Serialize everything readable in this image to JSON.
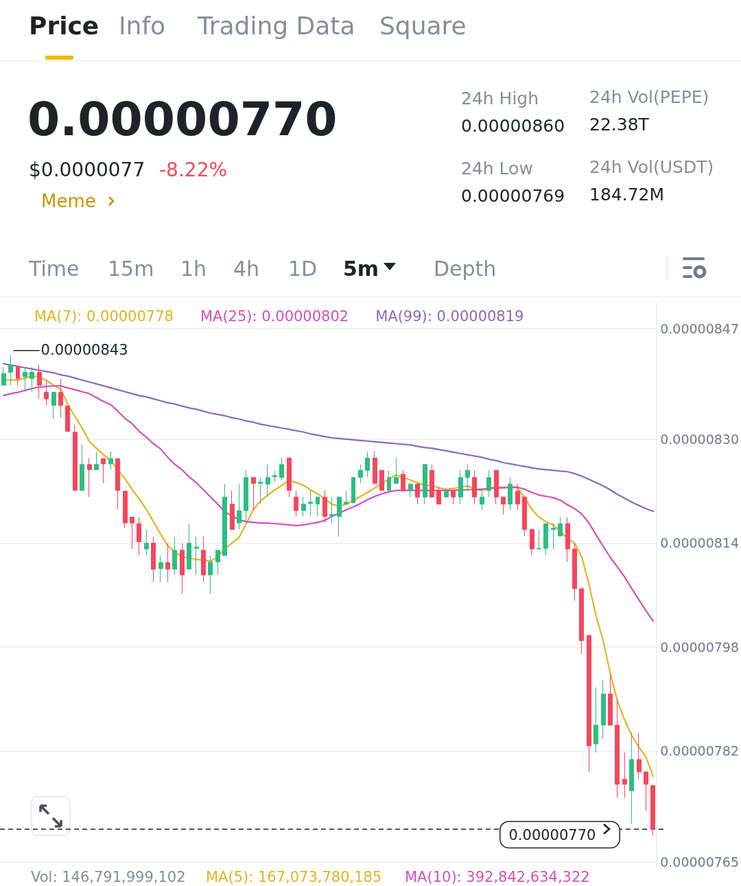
{
  "chart_data": {
    "type": "candlestick",
    "title": "0.00000770",
    "categories": [
      null,
      null,
      null,
      null,
      null,
      null,
      null,
      null,
      null,
      null,
      null,
      null,
      null,
      null,
      null,
      null,
      null,
      null,
      null,
      null,
      null,
      null,
      null,
      null,
      null,
      null,
      null,
      null,
      null,
      null,
      null,
      null,
      null,
      null,
      null,
      null,
      null,
      null,
      null,
      null,
      null,
      null,
      null,
      null,
      null,
      null,
      null,
      null,
      null,
      null,
      null,
      null,
      null,
      null,
      null,
      null,
      null,
      null,
      null,
      null,
      null,
      null,
      null,
      null,
      null,
      null,
      null,
      null,
      null,
      null,
      null,
      null,
      null,
      null,
      null,
      null,
      null,
      null,
      null,
      null,
      null,
      null,
      null,
      null,
      null,
      null,
      null,
      null,
      null,
      null,
      null,
      null
    ],
    "ohlc": [
      [
        8.383e-06,
        8.411e-06,
        8.383e-06,
        8.401e-06
      ],
      [
        8.403e-06,
        8.43e-06,
        8.383e-06,
        8.414e-06
      ],
      [
        8.411e-06,
        8.413e-06,
        8.383e-06,
        8.393e-06
      ],
      [
        8.396e-06,
        8.409e-06,
        8.375e-06,
        8.403e-06
      ],
      [
        8.393e-06,
        8.411e-06,
        8.373e-06,
        8.403e-06
      ],
      [
        8.403e-06,
        8.414e-06,
        8.362e-06,
        8.383e-06
      ],
      [
        8.372e-06,
        8.391e-06,
        8.352e-06,
        8.362e-06
      ],
      [
        8.352e-06,
        8.372e-06,
        8.332e-06,
        8.372e-06
      ],
      [
        8.372e-06,
        8.393e-06,
        8.333e-06,
        8.352e-06
      ],
      [
        8.351e-06,
        8.351e-06,
        8.312e-06,
        8.312e-06
      ],
      [
        8.311e-06,
        8.322e-06,
        8.221e-06,
        8.221e-06
      ],
      [
        8.221e-06,
        8.291e-06,
        8.221e-06,
        8.261e-06
      ],
      [
        8.261e-06,
        8.271e-06,
        8.211e-06,
        8.253e-06
      ],
      [
        8.253e-06,
        8.281e-06,
        8.253e-06,
        8.261e-06
      ],
      [
        8.27e-06,
        8.27e-06,
        8.232e-06,
        8.262e-06
      ],
      [
        8.262e-06,
        8.281e-06,
        8.253e-06,
        8.27e-06
      ],
      [
        8.27e-06,
        8.27e-06,
        8.192e-06,
        8.221e-06
      ],
      [
        8.22e-06,
        8.22e-06,
        8.163e-06,
        8.171e-06
      ],
      [
        8.18e-06,
        8.18e-06,
        8.131e-06,
        8.171e-06
      ],
      [
        8.17e-06,
        8.18e-06,
        8.121e-06,
        8.142e-06
      ],
      [
        8.131e-06,
        8.161e-06,
        8.121e-06,
        8.14e-06
      ],
      [
        8.14e-06,
        8.15e-06,
        8.08e-06,
        8.1e-06
      ],
      [
        8.101e-06,
        8.121e-06,
        8.08e-06,
        8.11e-06
      ],
      [
        8.11e-06,
        8.14e-06,
        8.08e-06,
        8.1e-06
      ],
      [
        8.1e-06,
        8.15e-06,
        8.091e-06,
        8.129e-06
      ],
      [
        8.129e-06,
        8.14e-06,
        8.062e-06,
        8.091e-06
      ],
      [
        8.1e-06,
        8.17e-06,
        8.1e-06,
        8.14e-06
      ],
      [
        8.132e-06,
        8.15e-06,
        8.091e-06,
        8.134e-06
      ],
      [
        8.129e-06,
        8.15e-06,
        8.08e-06,
        8.091e-06
      ],
      [
        8.091e-06,
        8.121e-06,
        8.062e-06,
        8.111e-06
      ],
      [
        8.111e-06,
        8.129e-06,
        8.091e-06,
        8.129e-06
      ],
      [
        8.121e-06,
        8.231e-06,
        8.121e-06,
        8.211e-06
      ],
      [
        8.2e-06,
        8.221e-06,
        8.161e-06,
        8.161e-06
      ],
      [
        8.171e-06,
        8.231e-06,
        8.161e-06,
        8.19e-06
      ],
      [
        8.19e-06,
        8.252e-06,
        8.171e-06,
        8.241e-06
      ],
      [
        8.241e-06,
        8.241e-06,
        8.19e-06,
        8.232e-06
      ],
      [
        8.232e-06,
        8.241e-06,
        8.2e-06,
        8.234e-06
      ],
      [
        8.231e-06,
        8.261e-06,
        8.211e-06,
        8.241e-06
      ],
      [
        8.242e-06,
        8.252e-06,
        8.234e-06,
        8.244e-06
      ],
      [
        8.241e-06,
        8.271e-06,
        8.236e-06,
        8.261e-06
      ],
      [
        8.271e-06,
        8.271e-06,
        8.211e-06,
        8.221e-06
      ],
      [
        8.211e-06,
        8.221e-06,
        8.181e-06,
        8.19e-06
      ],
      [
        8.19e-06,
        8.211e-06,
        8.181e-06,
        8.2e-06
      ],
      [
        8.201e-06,
        8.221e-06,
        8.181e-06,
        8.203e-06
      ],
      [
        8.2e-06,
        8.211e-06,
        8.181e-06,
        8.211e-06
      ],
      [
        8.211e-06,
        8.221e-06,
        8.171e-06,
        8.181e-06
      ],
      [
        8.182e-06,
        8.211e-06,
        8.171e-06,
        8.184e-06
      ],
      [
        8.181e-06,
        8.211e-06,
        8.15e-06,
        8.211e-06
      ],
      [
        8.2e-06,
        8.22e-06,
        8.2e-06,
        8.203e-06
      ],
      [
        8.202e-06,
        8.241e-06,
        8.202e-06,
        8.241e-06
      ],
      [
        8.241e-06,
        8.261e-06,
        8.232e-06,
        8.252e-06
      ],
      [
        8.252e-06,
        8.281e-06,
        8.242e-06,
        8.271e-06
      ],
      [
        8.271e-06,
        8.281e-06,
        8.232e-06,
        8.232e-06
      ],
      [
        8.252e-06,
        8.252e-06,
        8.221e-06,
        8.221e-06
      ],
      [
        8.221e-06,
        8.252e-06,
        8.221e-06,
        8.241e-06
      ],
      [
        8.232e-06,
        8.271e-06,
        8.232e-06,
        8.241e-06
      ],
      [
        8.246e-06,
        8.252e-06,
        8.221e-06,
        8.221e-06
      ],
      [
        8.221e-06,
        8.231e-06,
        8.211e-06,
        8.231e-06
      ],
      [
        8.231e-06,
        8.231e-06,
        8.2e-06,
        8.211e-06
      ],
      [
        8.211e-06,
        8.261e-06,
        8.2e-06,
        8.261e-06
      ],
      [
        8.252e-06,
        8.261e-06,
        8.211e-06,
        8.211e-06
      ],
      [
        8.221e-06,
        8.226e-06,
        8.2e-06,
        8.2e-06
      ],
      [
        8.211e-06,
        8.22e-06,
        8.211e-06,
        8.22e-06
      ],
      [
        8.22e-06,
        8.22e-06,
        8.2e-06,
        8.211e-06
      ],
      [
        8.211e-06,
        8.252e-06,
        8.2e-06,
        8.241e-06
      ],
      [
        8.241e-06,
        8.261e-06,
        8.221e-06,
        8.252e-06
      ],
      [
        8.241e-06,
        8.252e-06,
        8.2e-06,
        8.211e-06
      ],
      [
        8.2e-06,
        8.22e-06,
        8.191e-06,
        8.211e-06
      ],
      [
        8.221e-06,
        8.252e-06,
        8.211e-06,
        8.241e-06
      ],
      [
        8.252e-06,
        8.252e-06,
        8.2e-06,
        8.211e-06
      ],
      [
        8.211e-06,
        8.211e-06,
        8.184e-06,
        8.2e-06
      ],
      [
        8.2e-06,
        8.241e-06,
        8.191e-06,
        8.231e-06
      ],
      [
        8.22e-06,
        8.231e-06,
        8.191e-06,
        8.2e-06
      ],
      [
        8.211e-06,
        8.211e-06,
        8.151e-06,
        8.161e-06
      ],
      [
        8.161e-06,
        8.161e-06,
        8.121e-06,
        8.131e-06
      ],
      [
        8.131e-06,
        8.161e-06,
        8.131e-06,
        8.132e-06
      ],
      [
        8.132e-06,
        8.17e-06,
        8.121e-06,
        8.17e-06
      ],
      [
        8.161e-06,
        8.171e-06,
        8.131e-06,
        8.163e-06
      ],
      [
        8.151e-06,
        8.18e-06,
        8.151e-06,
        8.17e-06
      ],
      [
        8.17e-06,
        8.18e-06,
        8.111e-06,
        8.131e-06
      ],
      [
        8.131e-06,
        8.14e-06,
        8.051e-06,
        8.07e-06
      ],
      [
        8.07e-06,
        8.07e-06,
        7.969e-06,
        7.99e-06
      ],
      [
        7.998e-06,
        7.998e-06,
        7.788e-06,
        7.828e-06
      ],
      [
        7.831e-06,
        7.918e-06,
        7.818e-06,
        7.86e-06
      ],
      [
        7.86e-06,
        7.929e-06,
        7.839e-06,
        7.908e-06
      ],
      [
        7.908e-06,
        7.939e-06,
        7.86e-06,
        7.86e-06
      ],
      [
        7.86e-06,
        7.899e-06,
        7.748e-06,
        7.769e-06
      ],
      [
        7.777e-06,
        7.818e-06,
        7.748e-06,
        7.769e-06
      ],
      [
        7.759e-06,
        7.848e-06,
        7.708e-06,
        7.807e-06
      ],
      [
        7.807e-06,
        7.848e-06,
        7.777e-06,
        7.788e-06
      ],
      [
        7.788e-06,
        7.788e-06,
        7.728e-06,
        7.769e-06
      ],
      [
        7.767e-06,
        7.767e-06,
        7.69e-06,
        7.7e-06
      ]
    ],
    "series": [
      {
        "name": "MA(7): 0.00000778",
        "type": "line",
        "color": "#e6b422",
        "values": [
          8.391e-06,
          8.391e-06,
          8.391e-06,
          8.394e-06,
          8.397e-06,
          8.396e-06,
          8.39e-06,
          8.383e-06,
          8.377e-06,
          8.354e-06,
          8.335e-06,
          8.317e-06,
          8.297e-06,
          8.286e-06,
          8.276e-06,
          8.267e-06,
          8.253e-06,
          8.239e-06,
          8.223e-06,
          8.208e-06,
          8.192e-06,
          8.173e-06,
          8.154e-06,
          8.136e-06,
          8.126e-06,
          8.119e-06,
          8.117e-06,
          8.115e-06,
          8.114e-06,
          8.112e-06,
          8.119e-06,
          8.131e-06,
          8.14e-06,
          8.149e-06,
          8.17e-06,
          8.192e-06,
          8.205e-06,
          8.214e-06,
          8.222e-06,
          8.229e-06,
          8.237e-06,
          8.233e-06,
          8.229e-06,
          8.222e-06,
          8.216e-06,
          8.208e-06,
          8.2e-06,
          8.197e-06,
          8.2e-06,
          8.206e-06,
          8.212e-06,
          8.218e-06,
          8.225e-06,
          8.232e-06,
          8.239e-06,
          8.245e-06,
          8.241e-06,
          8.237e-06,
          8.233e-06,
          8.229e-06,
          8.229e-06,
          8.225e-06,
          8.223e-06,
          8.224e-06,
          8.226e-06,
          8.228e-06,
          8.223e-06,
          8.221e-06,
          8.225e-06,
          8.226e-06,
          8.226e-06,
          null,
          8.225e-06,
          8.21e-06,
          8.192e-06,
          8.18e-06,
          8.173e-06,
          8.168e-06,
          8.158e-06,
          8.147e-06,
          8.14e-06,
          8.119e-06,
          8.077e-06,
          8.028e-06,
          7.99e-06,
          7.939e-06,
          7.897e-06,
          7.868e-06,
          7.844e-06,
          7.826e-06,
          7.811e-06,
          7.781e-06
        ]
      },
      {
        "name": "MA(25): 0.00000802",
        "type": "line",
        "color": "#d44fbf",
        "values": [
          8.367e-06,
          8.37e-06,
          8.372e-06,
          8.375e-06,
          8.378e-06,
          8.38e-06,
          8.381e-06,
          8.382e-06,
          8.382e-06,
          8.379e-06,
          8.376e-06,
          8.373e-06,
          8.37e-06,
          8.364e-06,
          8.358e-06,
          8.353e-06,
          8.343e-06,
          8.332e-06,
          8.324e-06,
          8.312e-06,
          8.303e-06,
          8.293e-06,
          8.285e-06,
          8.272e-06,
          8.261e-06,
          8.253e-06,
          8.242e-06,
          8.233e-06,
          8.222e-06,
          8.211e-06,
          8.2e-06,
          8.188e-06,
          8.182e-06,
          8.176e-06,
          8.173e-06,
          8.172e-06,
          8.171e-06,
          8.171e-06,
          8.17e-06,
          8.169e-06,
          8.168e-06,
          8.167e-06,
          8.168e-06,
          8.17e-06,
          8.172e-06,
          8.175e-06,
          8.181e-06,
          8.186e-06,
          8.191e-06,
          8.196e-06,
          8.201e-06,
          8.207e-06,
          8.212e-06,
          8.216e-06,
          8.219e-06,
          8.221e-06,
          8.221e-06,
          8.221e-06,
          8.221e-06,
          8.221e-06,
          8.221e-06,
          8.221e-06,
          8.221e-06,
          8.221e-06,
          8.222e-06,
          8.222e-06,
          8.223e-06,
          8.223e-06,
          8.224e-06,
          8.225e-06,
          8.225e-06,
          8.226e-06,
          8.226e-06,
          8.223e-06,
          8.218e-06,
          8.214e-06,
          8.212e-06,
          8.21e-06,
          8.206e-06,
          8.199e-06,
          8.193e-06,
          8.185e-06,
          8.171e-06,
          8.153e-06,
          8.135e-06,
          8.118e-06,
          8.103e-06,
          8.088e-06,
          8.07e-06,
          8.053e-06,
          8.036e-06,
          8.02e-06
        ]
      },
      {
        "name": "MA(99): 0.00000819",
        "type": "line",
        "color": "#8a6ab8",
        "values": [
          8.416e-06,
          8.414e-06,
          8.412e-06,
          8.41e-06,
          8.408e-06,
          8.406e-06,
          8.404e-06,
          8.402e-06,
          8.399e-06,
          8.397e-06,
          8.394e-06,
          8.391e-06,
          8.388e-06,
          8.385e-06,
          8.382e-06,
          8.379e-06,
          8.376e-06,
          8.373e-06,
          8.37e-06,
          8.367e-06,
          8.365e-06,
          8.362e-06,
          8.359e-06,
          8.356e-06,
          8.354e-06,
          8.351e-06,
          8.348e-06,
          8.346e-06,
          8.343e-06,
          8.34e-06,
          8.338e-06,
          8.336e-06,
          8.333e-06,
          8.331e-06,
          8.328e-06,
          8.326e-06,
          8.323e-06,
          8.321e-06,
          8.319e-06,
          8.317e-06,
          8.315e-06,
          8.313e-06,
          8.311e-06,
          8.308e-06,
          8.306e-06,
          8.304e-06,
          8.302e-06,
          8.301e-06,
          8.3e-06,
          8.299e-06,
          8.298e-06,
          8.297e-06,
          8.296e-06,
          8.295e-06,
          8.294e-06,
          8.293e-06,
          8.292e-06,
          8.291e-06,
          8.289e-06,
          8.287e-06,
          8.286e-06,
          8.284e-06,
          8.282e-06,
          8.28e-06,
          8.278e-06,
          8.276e-06,
          8.274e-06,
          8.272e-06,
          8.269e-06,
          8.267e-06,
          8.264e-06,
          8.262e-06,
          8.26e-06,
          8.258e-06,
          8.256e-06,
          8.254e-06,
          8.253e-06,
          8.252e-06,
          8.251e-06,
          8.25e-06,
          8.247e-06,
          8.243e-06,
          8.238e-06,
          8.233e-06,
          8.228e-06,
          8.222e-06,
          8.215e-06,
          8.209e-06,
          8.203e-06,
          8.198e-06,
          8.193e-06,
          8.189e-06
        ]
      }
    ],
    "ylim": [
      7.64e-06,
      8.51e-06
    ],
    "yticks": [
      {
        "value": 8.47e-06,
        "label": "0.00000847"
      },
      {
        "value": 8.3e-06,
        "label": "0.00000830"
      },
      {
        "value": 8.14e-06,
        "label": "0.00000814"
      },
      {
        "value": 7.98e-06,
        "label": "0.00000798"
      },
      {
        "value": 7.82e-06,
        "label": "0.00000782"
      },
      {
        "value": 7.65e-06,
        "label": "0.00000765"
      }
    ],
    "ref_lines": [
      {
        "axis": "y",
        "value": 7.7e-06,
        "label": "0.00000770",
        "color": "#1e2329",
        "line_style": "dashed"
      }
    ],
    "annotations": [
      "Price",
      "Info",
      "Trading Data",
      "Square",
      "$0.0000077",
      "-8.22%",
      "Meme",
      "24h High",
      "0.00000860",
      "24h Low",
      "0.00000769",
      "24h Vol(PEPE)",
      "22.38T",
      "24h Vol(USDT)",
      "184.72M",
      "Time",
      "15m",
      "1h",
      "4h",
      "1D",
      "5m",
      "Depth",
      "0.00000843",
      "Vol: 146,791,999,102",
      "MA(5): 167,073,780,185",
      "MA(10): 392,842,634,322"
    ],
    "legend": "top left",
    "grid": "y",
    "marker": "none",
    "tick_labels": "y"
  }
}
